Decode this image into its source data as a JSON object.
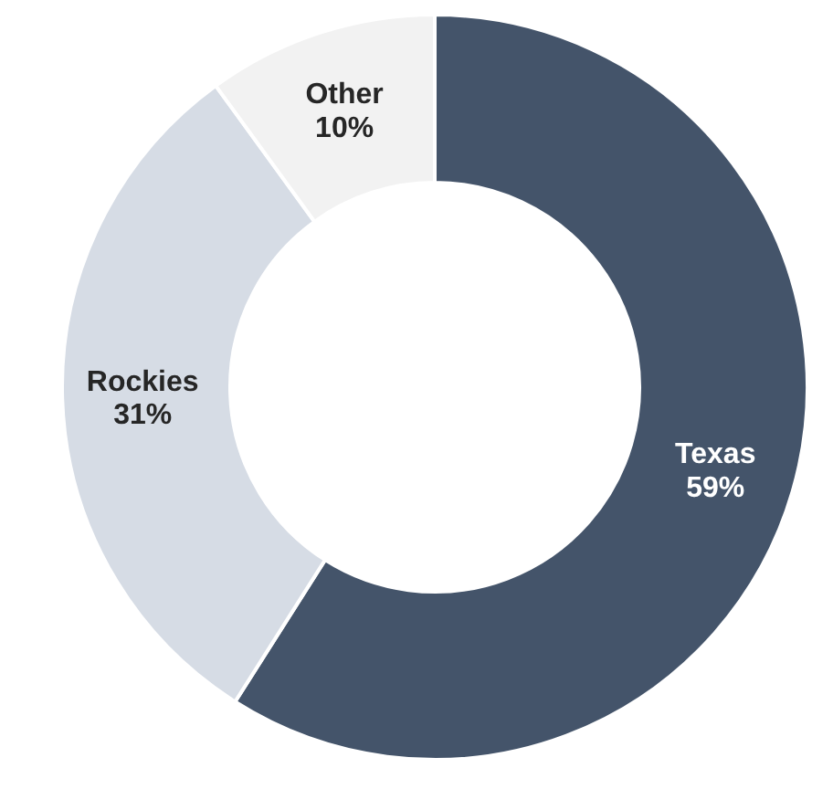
{
  "chart_data": {
    "type": "donut",
    "categories": [
      "Texas",
      "Rockies",
      "Other"
    ],
    "values": [
      59,
      31,
      10
    ],
    "colors": [
      "#44546a",
      "#d6dce5",
      "#f2f2f2"
    ],
    "value_labels": [
      "59%",
      "31%",
      "10%"
    ]
  }
}
